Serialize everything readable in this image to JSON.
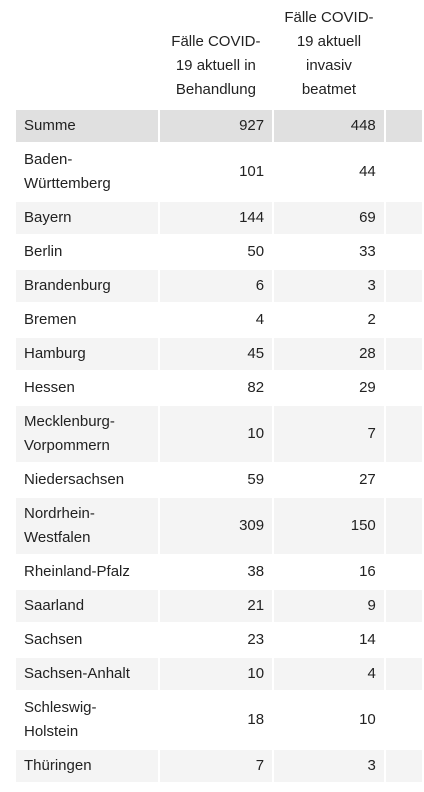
{
  "table": {
    "headers": [
      "Fälle COVID-19 aktuell in Behandlung",
      "Fälle COVID-19 aktuell invasiv beatmet"
    ],
    "rows": [
      [
        "Summe",
        927,
        448
      ],
      [
        "Baden-Württemberg",
        101,
        44
      ],
      [
        "Bayern",
        144,
        69
      ],
      [
        "Berlin",
        50,
        33
      ],
      [
        "Brandenburg",
        6,
        3
      ],
      [
        "Bremen",
        4,
        2
      ],
      [
        "Hamburg",
        45,
        28
      ],
      [
        "Hessen",
        82,
        29
      ],
      [
        "Mecklenburg-Vorpommern",
        10,
        7
      ],
      [
        "Niedersachsen",
        59,
        27
      ],
      [
        "Nordrhein-Westfalen",
        309,
        150
      ],
      [
        "Rheinland-Pfalz",
        38,
        16
      ],
      [
        "Saarland",
        21,
        9
      ],
      [
        "Sachsen",
        23,
        14
      ],
      [
        "Sachsen-Anhalt",
        10,
        4
      ],
      [
        "Schleswig-Holstein",
        18,
        10
      ],
      [
        "Thüringen",
        7,
        3
      ]
    ]
  }
}
